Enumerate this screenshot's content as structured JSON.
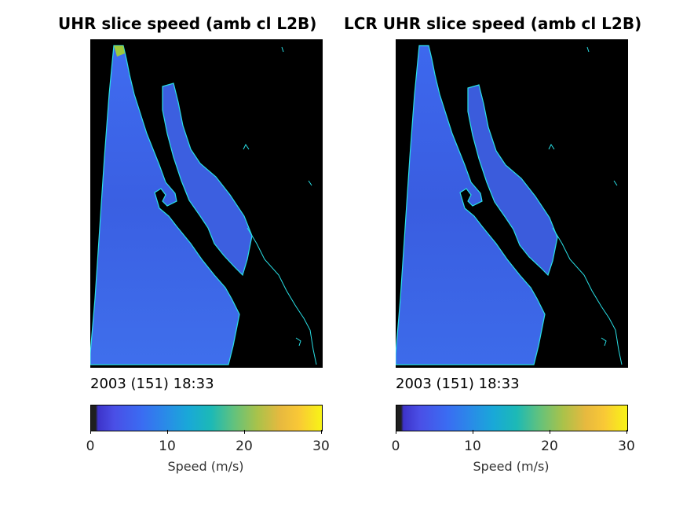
{
  "panels": [
    {
      "title": "UHR slice speed (amb cl L2B)",
      "timestamp": "2003 (151) 18:33",
      "colorbar": {
        "ticks": [
          "0",
          "10",
          "20",
          "30"
        ],
        "label": "Speed (m/s)"
      }
    },
    {
      "title": "LCR UHR slice speed (amb cl L2B)",
      "timestamp": "2003 (151) 18:33",
      "colorbar": {
        "ticks": [
          "0",
          "10",
          "20",
          "30"
        ],
        "label": "Speed (m/s)"
      }
    }
  ],
  "colors": {
    "ocean": "#3a63e6",
    "coast": "#29e0e6",
    "land": "#000000"
  }
}
